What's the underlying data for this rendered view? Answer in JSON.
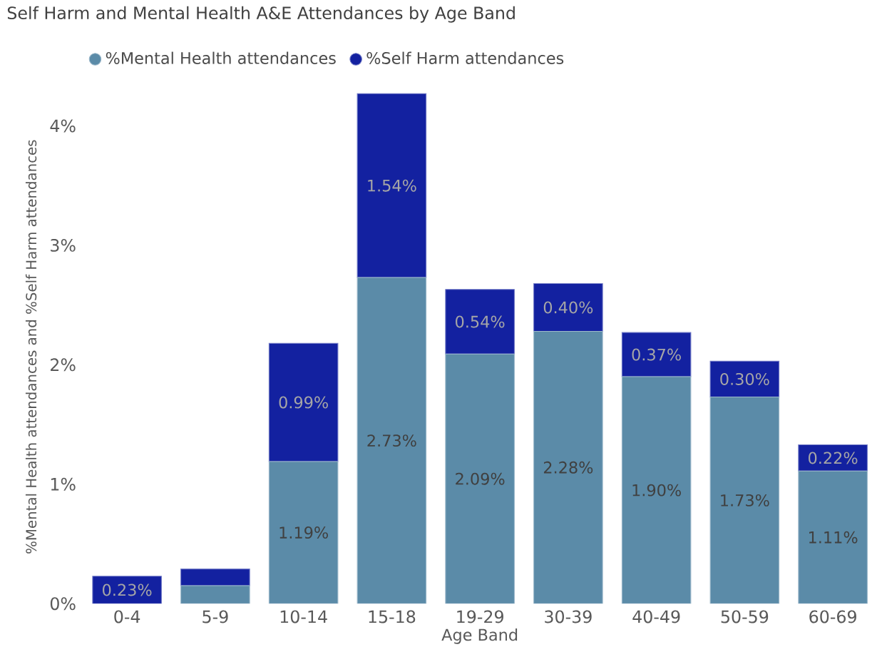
{
  "chart_data": {
    "type": "bar",
    "title": "Self Harm and Mental Health A&E Attendances by Age Band",
    "xlabel": "Age Band",
    "ylabel": "%Mental Health attendances and %Self Harm attendances",
    "categories": [
      "0-4",
      "5-9",
      "10-14",
      "15-18",
      "19-29",
      "30-39",
      "40-49",
      "50-59",
      "60-69"
    ],
    "stacked": true,
    "legend": "top left",
    "grid": false,
    "ylim": [
      0,
      4.3
    ],
    "yticks": [
      {
        "value": 0,
        "label": "0%"
      },
      {
        "value": 1,
        "label": "1%"
      },
      {
        "value": 2,
        "label": "2%"
      },
      {
        "value": 3,
        "label": "3%"
      },
      {
        "value": 4,
        "label": "4%"
      }
    ],
    "series": [
      {
        "name": "%Mental Health attendances",
        "color": "#5b8ba8",
        "values": [
          0,
          0.15,
          1.19,
          2.73,
          2.09,
          2.28,
          1.9,
          1.73,
          1.11
        ],
        "value_labels": [
          null,
          null,
          "1.19%",
          "2.73%",
          "2.09%",
          "2.28%",
          "1.90%",
          "1.73%",
          "1.11%"
        ]
      },
      {
        "name": "%Self Harm attendances",
        "color": "#1321a0",
        "values": [
          0.23,
          0.14,
          0.99,
          1.54,
          0.54,
          0.4,
          0.37,
          0.3,
          0.22
        ],
        "value_labels": [
          "0.23%",
          null,
          "0.99%",
          "1.54%",
          "0.54%",
          "0.40%",
          "0.37%",
          "0.30%",
          "0.22%"
        ]
      }
    ]
  }
}
